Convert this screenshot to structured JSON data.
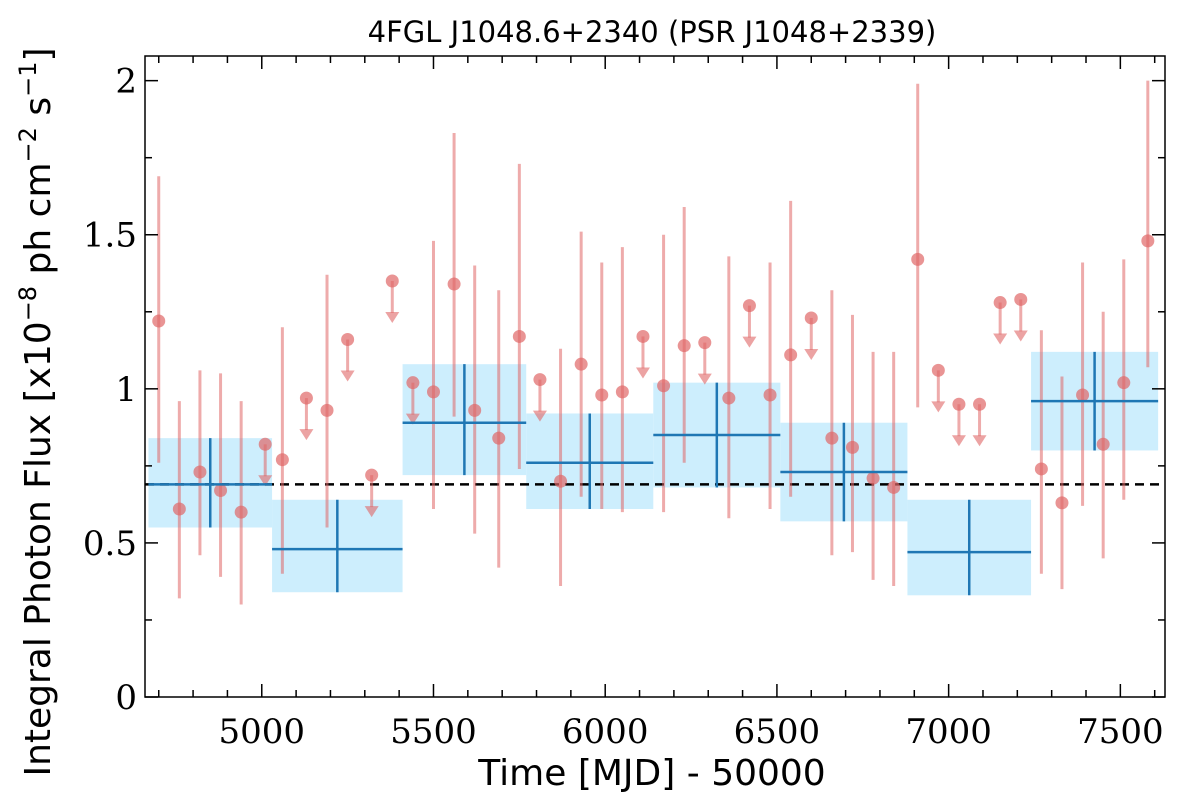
{
  "chart_data": {
    "type": "scatter",
    "title": "4FGL J1048.6+2340 (PSR J1048+2339)",
    "xlabel": "Time [MJD] - 50000",
    "ylabel": "Integral Photon Flux [x10^-8 ph cm^-2 s^-1]",
    "ylabel_parts": {
      "base": "Integral Photon Flux [x10",
      "exp1": "−8",
      "mid": " ph cm",
      "exp2": "−2",
      "mid2": " s",
      "exp3": "−1",
      "end": "]"
    },
    "xlim": [
      4660,
      7630
    ],
    "ylim": [
      0,
      2.08
    ],
    "x_ticks": [
      5000,
      5500,
      6000,
      6500,
      7000,
      7500
    ],
    "y_ticks": [
      0,
      0.5,
      1,
      1.5,
      2
    ],
    "y_tick_labels": [
      "0",
      "0.5",
      "1",
      "1.5",
      "2"
    ],
    "mean_flux": 0.69,
    "colors": {
      "points": "#e06666",
      "bins": "#1f77b4",
      "bin_fill": "#cdeefd",
      "mean_line": "#000000"
    },
    "series": [
      {
        "style": "binned-flux",
        "bins": [
          {
            "x_start": 4670,
            "x_end": 5030,
            "y": 0.69,
            "y_low": 0.55,
            "y_high": 0.84
          },
          {
            "x_start": 5030,
            "x_end": 5410,
            "y": 0.48,
            "y_low": 0.34,
            "y_high": 0.64
          },
          {
            "x_start": 5410,
            "x_end": 5770,
            "y": 0.89,
            "y_low": 0.72,
            "y_high": 1.08
          },
          {
            "x_start": 5770,
            "x_end": 6140,
            "y": 0.76,
            "y_low": 0.61,
            "y_high": 0.92
          },
          {
            "x_start": 6140,
            "x_end": 6510,
            "y": 0.85,
            "y_low": 0.68,
            "y_high": 1.02
          },
          {
            "x_start": 6510,
            "x_end": 6880,
            "y": 0.73,
            "y_low": 0.57,
            "y_high": 0.89
          },
          {
            "x_start": 6880,
            "x_end": 7240,
            "y": 0.47,
            "y_low": 0.33,
            "y_high": 0.64
          },
          {
            "x_start": 7240,
            "x_end": 7610,
            "y": 0.96,
            "y_low": 0.8,
            "y_high": 1.12
          }
        ]
      },
      {
        "style": "detections",
        "points": [
          {
            "x": 4700,
            "y": 1.22,
            "y_low": 0.76,
            "y_high": 1.69
          },
          {
            "x": 4760,
            "y": 0.61,
            "y_low": 0.32,
            "y_high": 0.96
          },
          {
            "x": 4820,
            "y": 0.73,
            "y_low": 0.46,
            "y_high": 1.06
          },
          {
            "x": 4880,
            "y": 0.67,
            "y_low": 0.39,
            "y_high": 1.05
          },
          {
            "x": 4940,
            "y": 0.6,
            "y_low": 0.3,
            "y_high": 0.96
          },
          {
            "x": 5060,
            "y": 0.77,
            "y_low": 0.4,
            "y_high": 1.2
          },
          {
            "x": 5190,
            "y": 0.93,
            "y_low": 0.55,
            "y_high": 1.37
          },
          {
            "x": 5500,
            "y": 0.99,
            "y_low": 0.61,
            "y_high": 1.48
          },
          {
            "x": 5560,
            "y": 1.34,
            "y_low": 0.91,
            "y_high": 1.83
          },
          {
            "x": 5620,
            "y": 0.93,
            "y_low": 0.53,
            "y_high": 1.4
          },
          {
            "x": 5690,
            "y": 0.84,
            "y_low": 0.42,
            "y_high": 1.32
          },
          {
            "x": 5750,
            "y": 1.17,
            "y_low": 0.74,
            "y_high": 1.73
          },
          {
            "x": 5870,
            "y": 0.7,
            "y_low": 0.36,
            "y_high": 1.13
          },
          {
            "x": 5930,
            "y": 1.08,
            "y_low": 0.65,
            "y_high": 1.51
          },
          {
            "x": 5990,
            "y": 0.98,
            "y_low": 0.61,
            "y_high": 1.41
          },
          {
            "x": 6050,
            "y": 0.99,
            "y_low": 0.6,
            "y_high": 1.46
          },
          {
            "x": 6170,
            "y": 1.01,
            "y_low": 0.6,
            "y_high": 1.5
          },
          {
            "x": 6230,
            "y": 1.14,
            "y_low": 0.76,
            "y_high": 1.59
          },
          {
            "x": 6360,
            "y": 0.97,
            "y_low": 0.58,
            "y_high": 1.43
          },
          {
            "x": 6480,
            "y": 0.98,
            "y_low": 0.61,
            "y_high": 1.41
          },
          {
            "x": 6540,
            "y": 1.11,
            "y_low": 0.65,
            "y_high": 1.61
          },
          {
            "x": 6660,
            "y": 0.84,
            "y_low": 0.46,
            "y_high": 1.32
          },
          {
            "x": 6720,
            "y": 0.81,
            "y_low": 0.47,
            "y_high": 1.24
          },
          {
            "x": 6780,
            "y": 0.71,
            "y_low": 0.38,
            "y_high": 1.12
          },
          {
            "x": 6840,
            "y": 0.68,
            "y_low": 0.36,
            "y_high": 1.12
          },
          {
            "x": 6910,
            "y": 1.42,
            "y_low": 0.94,
            "y_high": 1.99
          },
          {
            "x": 7270,
            "y": 0.74,
            "y_low": 0.4,
            "y_high": 1.19
          },
          {
            "x": 7330,
            "y": 0.63,
            "y_low": 0.35,
            "y_high": 1.04
          },
          {
            "x": 7390,
            "y": 0.98,
            "y_low": 0.62,
            "y_high": 1.41
          },
          {
            "x": 7450,
            "y": 0.82,
            "y_low": 0.45,
            "y_high": 1.25
          },
          {
            "x": 7510,
            "y": 1.02,
            "y_low": 0.64,
            "y_high": 1.42
          },
          {
            "x": 7580,
            "y": 1.48,
            "y_low": 1.07,
            "y_high": 2.0
          }
        ]
      },
      {
        "style": "upper-limits",
        "points": [
          {
            "x": 5010,
            "y": 0.82
          },
          {
            "x": 5130,
            "y": 0.97
          },
          {
            "x": 5250,
            "y": 1.16
          },
          {
            "x": 5320,
            "y": 0.72
          },
          {
            "x": 5380,
            "y": 1.35
          },
          {
            "x": 5440,
            "y": 1.02
          },
          {
            "x": 5810,
            "y": 1.03
          },
          {
            "x": 6110,
            "y": 1.17
          },
          {
            "x": 6290,
            "y": 1.15
          },
          {
            "x": 6420,
            "y": 1.27
          },
          {
            "x": 6600,
            "y": 1.23
          },
          {
            "x": 6970,
            "y": 1.06
          },
          {
            "x": 7030,
            "y": 0.95
          },
          {
            "x": 7090,
            "y": 0.95
          },
          {
            "x": 7150,
            "y": 1.28
          },
          {
            "x": 7210,
            "y": 1.29
          }
        ]
      }
    ]
  }
}
